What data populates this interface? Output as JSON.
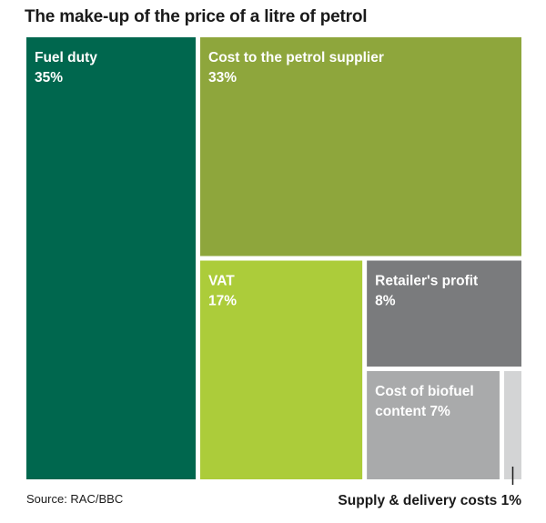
{
  "chart_data": {
    "type": "treemap",
    "title": "The make-up of the price of a litre of petrol",
    "source": "Source: RAC/BBC",
    "unit": "%",
    "items": [
      {
        "label": "Fuel duty",
        "value_text": "35%",
        "value": 35,
        "color": "#00674e",
        "text_color": "#ffffff"
      },
      {
        "label": "Cost to the petrol supplier",
        "value_text": "33%",
        "value": 33,
        "color": "#8ea63c",
        "text_color": "#ffffff"
      },
      {
        "label": "VAT",
        "value_text": "17%",
        "value": 17,
        "color": "#accc3a",
        "text_color": "#ffffff"
      },
      {
        "label": "Retailer's profit",
        "value_text": "8%",
        "value": 8,
        "color": "#7a7b7d",
        "text_color": "#ffffff"
      },
      {
        "label": "Cost of biofuel content 7%",
        "value_text": "",
        "value": 7,
        "color": "#a9aaab",
        "text_color": "#ffffff"
      },
      {
        "label": "Supply & delivery costs 1%",
        "value_text": "",
        "value": 1,
        "color": "#d3d4d5",
        "text_color": "#1a1a1a"
      }
    ]
  }
}
